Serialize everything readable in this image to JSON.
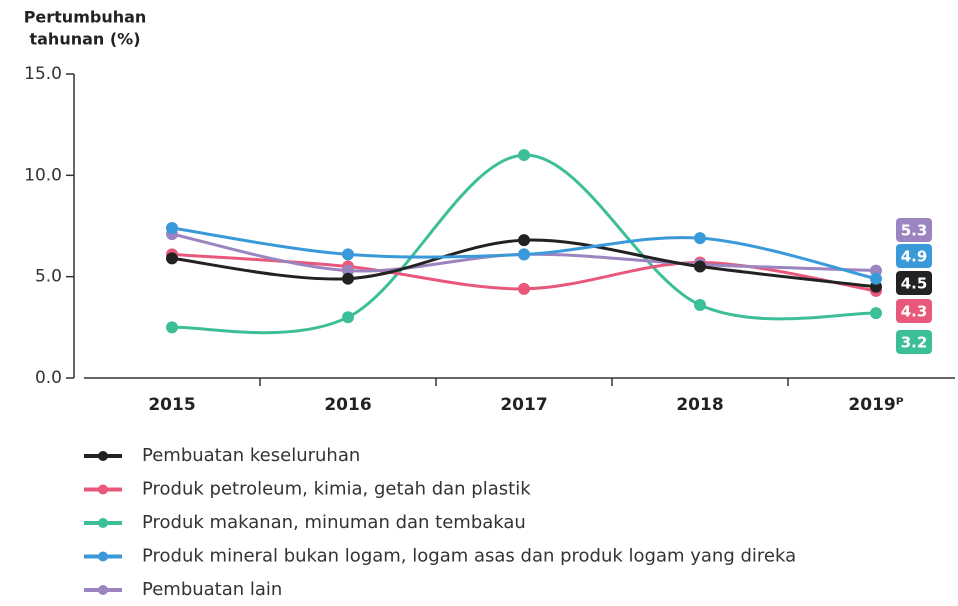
{
  "chart_data": {
    "type": "line",
    "y_label": [
      "Pertumbuhan",
      "tahunan (%)"
    ],
    "categories": [
      "2015",
      "2016",
      "2017",
      "2018",
      "2019ᴾ"
    ],
    "ylim": [
      0,
      15
    ],
    "yticks": [
      {
        "value": 0,
        "label": "0.0"
      },
      {
        "value": 5,
        "label": "5.0"
      },
      {
        "value": 10,
        "label": "10.0"
      },
      {
        "value": 15,
        "label": "15.0"
      }
    ],
    "series": [
      {
        "name": "Pembuatan keseluruhan",
        "color": "#222222",
        "values": [
          5.9,
          4.9,
          6.8,
          5.5,
          4.5
        ]
      },
      {
        "name": "Produk petroleum, kimia, getah dan plastik",
        "color": "#e8587a",
        "values": [
          6.1,
          5.5,
          4.4,
          5.7,
          4.3
        ]
      },
      {
        "name": "Produk makanan, minuman dan tembakau",
        "color": "#3cbf98",
        "values": [
          2.5,
          3.0,
          11.0,
          3.6,
          3.2
        ]
      },
      {
        "name": "Produk mineral bukan logam, logam asas dan produk logam yang direka",
        "color": "#3a9ad9",
        "values": [
          7.4,
          6.1,
          6.1,
          6.9,
          4.9
        ]
      },
      {
        "name": "Pembuatan lain",
        "color": "#9b84c0",
        "values": [
          7.1,
          5.3,
          6.1,
          5.6,
          5.3
        ]
      }
    ]
  }
}
